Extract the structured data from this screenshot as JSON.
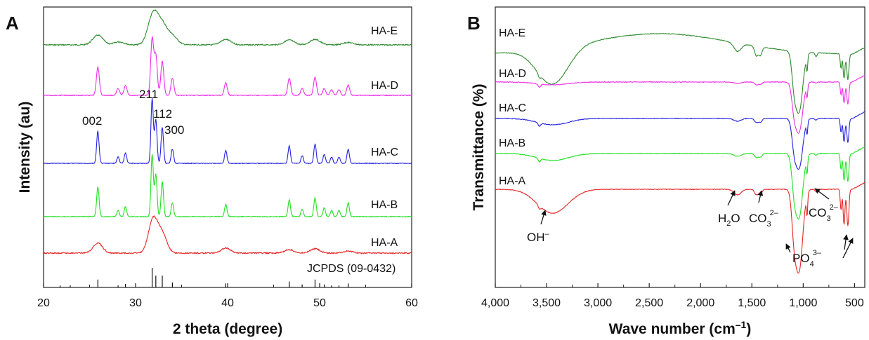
{
  "chart_data": [
    {
      "panel": "A",
      "type": "line",
      "xlabel": "2 theta (degree)",
      "ylabel": "Intensity (au)",
      "xlim": [
        20,
        60
      ],
      "x_ticks": [
        "20",
        "30",
        "40",
        "50",
        "60"
      ],
      "y_ticks_labeled": false,
      "grid": false,
      "legend": "none; series labeled on the right side of each trace",
      "series": [
        {
          "name": "HA-E",
          "color": "#2e8b2e",
          "note": "poorly crystalline, broad hump centred near 32°",
          "peaks": [
            {
              "x": 25.9,
              "height": 0.32
            },
            {
              "x": 28.2,
              "height": 0.1
            },
            {
              "x": 31.9,
              "height": 1.0
            },
            {
              "x": 32.9,
              "height": 0.6
            },
            {
              "x": 34.0,
              "height": 0.28
            },
            {
              "x": 39.8,
              "height": 0.18
            },
            {
              "x": 46.7,
              "height": 0.16
            },
            {
              "x": 49.5,
              "height": 0.18
            },
            {
              "x": 53.1,
              "height": 0.08
            }
          ]
        },
        {
          "name": "HA-D",
          "color": "#ee2ee8",
          "note": "crystalline",
          "peaks": [
            {
              "x": 25.9,
              "height": 0.5
            },
            {
              "x": 28.1,
              "height": 0.12
            },
            {
              "x": 28.9,
              "height": 0.17
            },
            {
              "x": 31.8,
              "height": 1.0
            },
            {
              "x": 32.2,
              "height": 0.7
            },
            {
              "x": 32.9,
              "height": 0.6
            },
            {
              "x": 34.0,
              "height": 0.3
            },
            {
              "x": 39.8,
              "height": 0.22
            },
            {
              "x": 46.7,
              "height": 0.3
            },
            {
              "x": 48.1,
              "height": 0.12
            },
            {
              "x": 49.5,
              "height": 0.32
            },
            {
              "x": 50.5,
              "height": 0.12
            },
            {
              "x": 51.3,
              "height": 0.1
            },
            {
              "x": 52.1,
              "height": 0.1
            },
            {
              "x": 53.1,
              "height": 0.18
            }
          ]
        },
        {
          "name": "HA-C",
          "color": "#2323e0",
          "note": "crystalline",
          "peaks": [
            {
              "x": 25.9,
              "height": 0.5
            },
            {
              "x": 28.1,
              "height": 0.1
            },
            {
              "x": 28.9,
              "height": 0.16
            },
            {
              "x": 31.8,
              "height": 1.0
            },
            {
              "x": 32.2,
              "height": 0.68
            },
            {
              "x": 32.9,
              "height": 0.56
            },
            {
              "x": 34.0,
              "height": 0.22
            },
            {
              "x": 39.8,
              "height": 0.2
            },
            {
              "x": 46.7,
              "height": 0.27
            },
            {
              "x": 48.1,
              "height": 0.12
            },
            {
              "x": 49.5,
              "height": 0.3
            },
            {
              "x": 50.5,
              "height": 0.14
            },
            {
              "x": 51.3,
              "height": 0.1
            },
            {
              "x": 52.1,
              "height": 0.1
            },
            {
              "x": 53.1,
              "height": 0.22
            }
          ]
        },
        {
          "name": "HA-B",
          "color": "#22e022",
          "note": "crystalline",
          "peaks": [
            {
              "x": 25.9,
              "height": 0.48
            },
            {
              "x": 28.1,
              "height": 0.1
            },
            {
              "x": 28.9,
              "height": 0.16
            },
            {
              "x": 31.8,
              "height": 1.0
            },
            {
              "x": 32.2,
              "height": 0.68
            },
            {
              "x": 32.9,
              "height": 0.56
            },
            {
              "x": 34.0,
              "height": 0.22
            },
            {
              "x": 39.8,
              "height": 0.2
            },
            {
              "x": 46.7,
              "height": 0.27
            },
            {
              "x": 48.1,
              "height": 0.12
            },
            {
              "x": 49.5,
              "height": 0.3
            },
            {
              "x": 50.5,
              "height": 0.14
            },
            {
              "x": 51.3,
              "height": 0.1
            },
            {
              "x": 52.1,
              "height": 0.1
            },
            {
              "x": 53.1,
              "height": 0.22
            }
          ]
        },
        {
          "name": "HA-A",
          "color": "#e82424",
          "note": "poorly crystalline, broad hump centred near 32°",
          "peaks": [
            {
              "x": 25.9,
              "height": 0.3
            },
            {
              "x": 31.9,
              "height": 1.0
            },
            {
              "x": 32.9,
              "height": 0.55
            },
            {
              "x": 39.8,
              "height": 0.15
            },
            {
              "x": 46.7,
              "height": 0.1
            },
            {
              "x": 49.5,
              "height": 0.13
            },
            {
              "x": 53.1,
              "height": 0.06
            }
          ]
        }
      ],
      "reference": {
        "name": "JCPDS (09-0432)",
        "sticks": [
          {
            "x": 21.8,
            "i": 0.1
          },
          {
            "x": 22.9,
            "i": 0.1
          },
          {
            "x": 25.9,
            "i": 0.4
          },
          {
            "x": 28.1,
            "i": 0.1
          },
          {
            "x": 28.9,
            "i": 0.18
          },
          {
            "x": 31.8,
            "i": 1.0
          },
          {
            "x": 32.2,
            "i": 0.6
          },
          {
            "x": 32.9,
            "i": 0.6
          },
          {
            "x": 34.0,
            "i": 0.25
          },
          {
            "x": 39.8,
            "i": 0.2
          },
          {
            "x": 46.7,
            "i": 0.3
          },
          {
            "x": 48.1,
            "i": 0.15
          },
          {
            "x": 49.5,
            "i": 0.4
          },
          {
            "x": 50.5,
            "i": 0.15
          },
          {
            "x": 51.3,
            "i": 0.1
          },
          {
            "x": 52.1,
            "i": 0.1
          },
          {
            "x": 53.1,
            "i": 0.2
          }
        ]
      },
      "annotations": [
        {
          "text": "002",
          "x": 25.9
        },
        {
          "text": "211",
          "x": 31.8
        },
        {
          "text": "112",
          "x": 32.2
        },
        {
          "text": "300",
          "x": 32.9
        }
      ]
    },
    {
      "panel": "B",
      "type": "line",
      "xlabel": "Wave number (cm⁻¹)",
      "ylabel": "Transmittance (%)",
      "xlim": [
        4000,
        400
      ],
      "x_reversed": true,
      "x_ticks": [
        "4,000",
        "3,500",
        "3,000",
        "2,500",
        "2,000",
        "1,500",
        "1,000",
        "500"
      ],
      "y_ticks_labeled": false,
      "grid": false,
      "legend": "none; series labeled at the left of each trace",
      "series": [
        {
          "name": "HA-E",
          "color": "#2e8b2e"
        },
        {
          "name": "HA-D",
          "color": "#ee2ee8"
        },
        {
          "name": "HA-C",
          "color": "#2323e0"
        },
        {
          "name": "HA-B",
          "color": "#22e022"
        },
        {
          "name": "HA-A",
          "color": "#e82424"
        }
      ],
      "band_annotations": [
        {
          "base": "OH",
          "sup": "–",
          "x": 3570
        },
        {
          "base": "H",
          "sub": "2",
          "tail": "O",
          "x": 1640
        },
        {
          "base": "CO",
          "sub": "3",
          "sup": "2–",
          "x": 1450
        },
        {
          "base": "CO",
          "sub": "3",
          "sup": "2–",
          "x": 875
        },
        {
          "base": "PO",
          "sub": "4",
          "sup": "3–",
          "x": 1040
        }
      ]
    }
  ],
  "panel_a": {
    "letter": "A",
    "title_x": "2 theta (degree)",
    "title_y": "Intensity (au)",
    "series_labels": [
      "HA-E",
      "HA-D",
      "HA-C",
      "HA-B",
      "HA-A"
    ],
    "ref_label": "JCPDS (09-0432)",
    "peak_labels": [
      "002",
      "211",
      "112",
      "300"
    ]
  },
  "panel_b": {
    "letter": "B",
    "title_x": "Wave number (cm",
    "title_x_sup": "–1",
    "title_x_end": ")",
    "title_y": "Transmittance (%)",
    "series_labels": [
      "HA-E",
      "HA-D",
      "HA-C",
      "HA-B",
      "HA-A"
    ],
    "oh": {
      "base": "OH",
      "sup": "–"
    },
    "h2o": {
      "base": "H",
      "sub": "2",
      "tail": "O"
    },
    "co3a": {
      "base": "CO",
      "sub": "3",
      "sup": "2–"
    },
    "co3b": {
      "base": "CO",
      "sub": "3",
      "sup": "2–"
    },
    "po4": {
      "base": "PO",
      "sub": "4",
      "sup": "3–"
    }
  }
}
